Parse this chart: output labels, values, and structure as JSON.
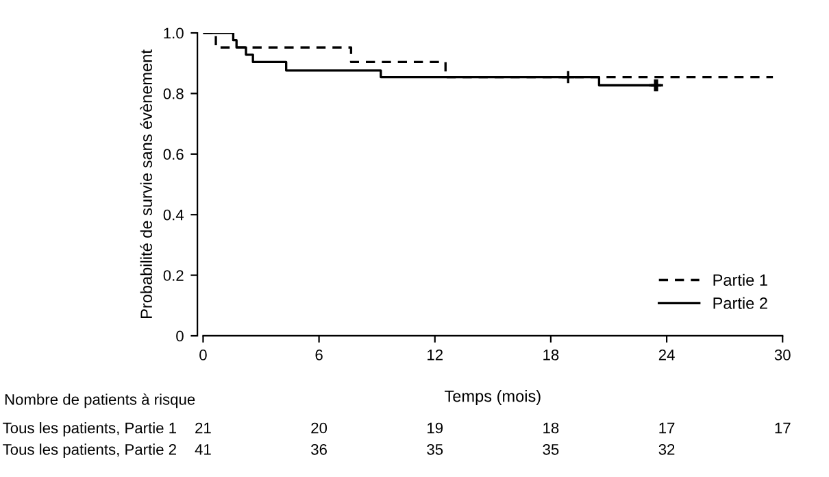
{
  "chart_data": {
    "type": "step",
    "xlabel": "Temps (mois)",
    "ylabel": "Probabilité de survie sans évènement",
    "xlim": [
      0,
      30
    ],
    "xticks": [
      0,
      6,
      12,
      18,
      24,
      30
    ],
    "ylim": [
      0,
      1.0
    ],
    "yticks": [
      {
        "value": 0,
        "label": "0"
      },
      0.2,
      0.4,
      0.6,
      0.8,
      {
        "value": 1.0,
        "label": "1.0"
      }
    ],
    "grid": false,
    "legend": "bottom right",
    "series": [
      {
        "name": "Partie 1",
        "color": "#000000",
        "line_style": "dashed",
        "x": [
          0,
          0.66,
          7.66,
          12.55,
          29.5
        ],
        "values": [
          1.0,
          0.952,
          0.904,
          0.854,
          0.854
        ]
      },
      {
        "name": "Partie 2",
        "color": "#000000",
        "line_style": "solid",
        "x": [
          0,
          1.56,
          1.73,
          2.22,
          2.58,
          4.3,
          9.2,
          20.5,
          23.5
        ],
        "values": [
          1.0,
          0.976,
          0.952,
          0.928,
          0.904,
          0.876,
          0.854,
          0.827,
          0.827
        ]
      },
      {
        "type": "scatter",
        "marker": "cross",
        "color": "#000000",
        "x": [
          18.9,
          23.4,
          23.5
        ],
        "values": [
          0.854,
          0.827,
          0.827
        ]
      }
    ],
    "annotations": [
      "Nombre de patients à risque",
      "Tous les patients, Partie 1",
      "21 20 19 18 17 17",
      "Tous les patients, Partie 2",
      "41 36 35 35 32"
    ]
  }
}
